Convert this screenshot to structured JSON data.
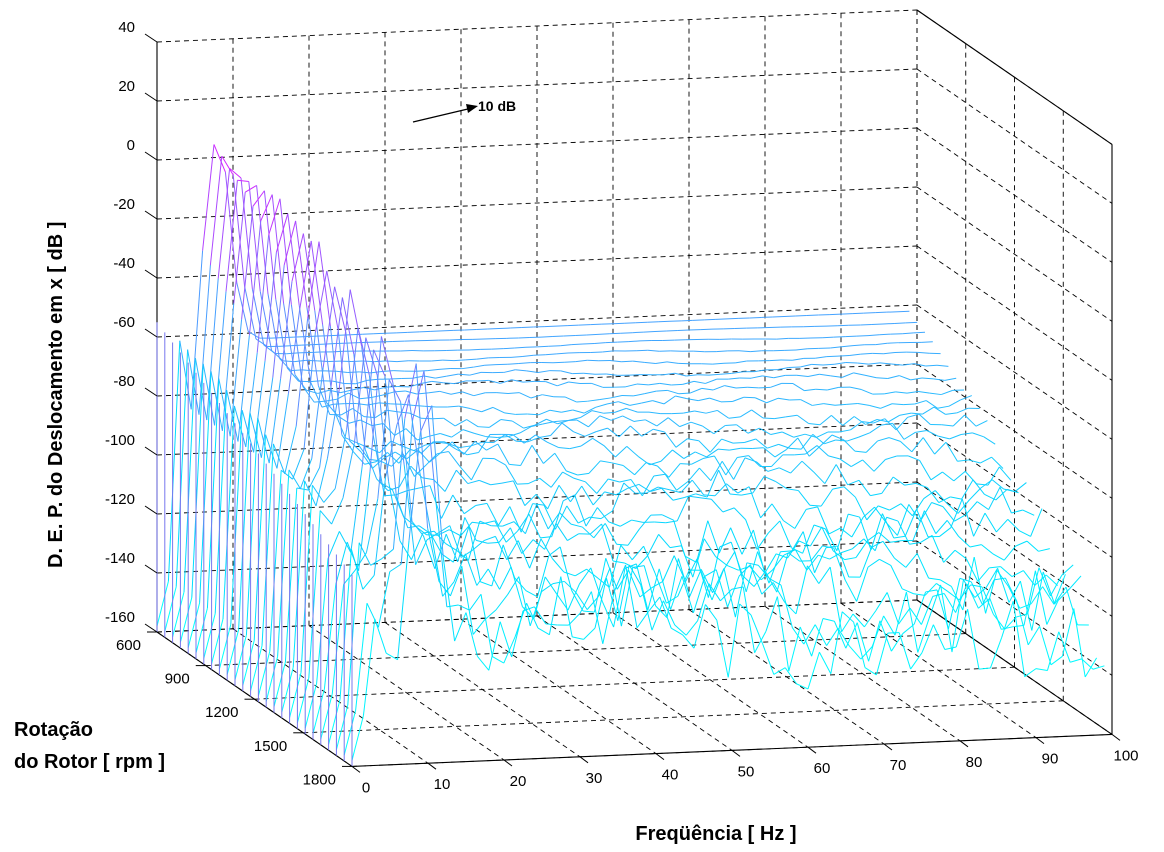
{
  "chart_data": {
    "type": "waterfall-3d",
    "xlabel": "Freqüência [ Hz ]",
    "ylabel": "D. E. P.  do Deslocamento em x [ dB ]",
    "zlabel_line1": "Rotação",
    "zlabel_line2": "do Rotor [ rpm ]",
    "annotation": "10 dB",
    "freq_ticks": [
      "0",
      "10",
      "20",
      "30",
      "40",
      "50",
      "60",
      "70",
      "80",
      "90",
      "100"
    ],
    "db_ticks": [
      "40",
      "20",
      "0",
      "-20",
      "-40",
      "-60",
      "-80",
      "-100",
      "-120",
      "-140",
      "-160"
    ],
    "rpm_ticks": [
      "600",
      "900",
      "1200",
      "1500",
      "1800"
    ],
    "freq_range": [
      0,
      100
    ],
    "db_range": [
      -160,
      40
    ],
    "rpm_range": [
      600,
      1800
    ],
    "grid": true,
    "colormap": [
      "#ff00ff",
      "#00ffff"
    ],
    "series": [
      {
        "rpm": 600,
        "peak_freq": 8.0,
        "peak_db": 8,
        "floor_db": -62
      },
      {
        "rpm": 900,
        "peak_freq": 8.5,
        "peak_db": 2,
        "floor_db": -68
      },
      {
        "rpm": 1200,
        "peak_freq": 9.0,
        "peak_db": -10,
        "floor_db": -78
      },
      {
        "rpm": 1500,
        "peak_freq": 9.5,
        "peak_db": -25,
        "floor_db": -95
      },
      {
        "rpm": 1800,
        "peak_freq": 10.0,
        "peak_db": -40,
        "floor_db": -110
      }
    ]
  }
}
